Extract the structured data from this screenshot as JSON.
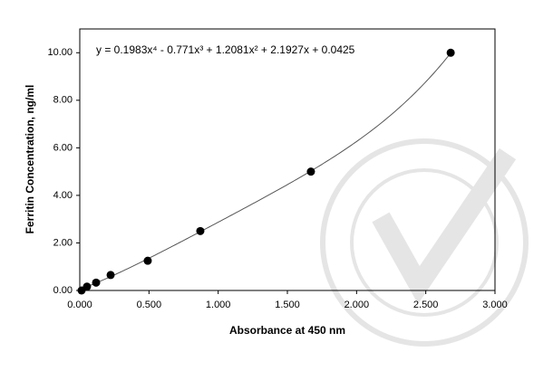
{
  "chart_data": {
    "type": "scatter",
    "x_label": "Absorbance at 450 nm",
    "y_label": "Ferritin Concentration, ng/ml",
    "equation": "y = 0.1983x⁴ - 0.771x³ + 1.2081x² + 2.1927x + 0.0425",
    "fit_coefficients": [
      0.1983,
      -0.771,
      1.2081,
      2.1927,
      0.0425
    ],
    "x": [
      0.013,
      0.052,
      0.118,
      0.223,
      0.491,
      0.871,
      1.67,
      2.68
    ],
    "values": [
      0,
      0.16,
      0.33,
      0.65,
      1.25,
      2.5,
      5,
      10
    ],
    "color": "#000000",
    "xlim": [
      0,
      3
    ],
    "xticks": [
      {
        "value": 0,
        "label": "0.000"
      },
      {
        "value": 0.5,
        "label": "0.500"
      },
      {
        "value": 1,
        "label": "1.000"
      },
      {
        "value": 1.5,
        "label": "1.500"
      },
      {
        "value": 2,
        "label": "2.000"
      },
      {
        "value": 2.5,
        "label": "2.500"
      },
      {
        "value": 3,
        "label": "3.000"
      }
    ],
    "ylim": [
      0,
      11
    ],
    "yticks": [
      {
        "value": 0,
        "label": "0.00"
      },
      {
        "value": 2,
        "label": "2.00"
      },
      {
        "value": 4,
        "label": "4.00"
      },
      {
        "value": 6,
        "label": "6.00"
      },
      {
        "value": 8,
        "label": "8.00"
      },
      {
        "value": 10,
        "label": "10.00"
      }
    ]
  }
}
